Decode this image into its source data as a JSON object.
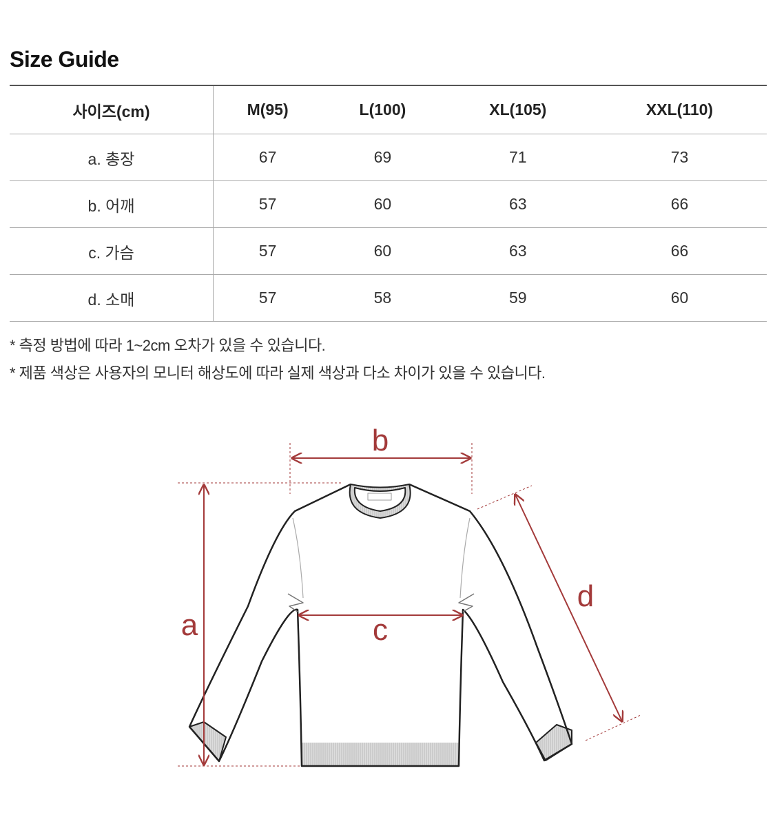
{
  "title": "Size Guide",
  "table": {
    "headers": [
      "사이즈(cm)",
      "M(95)",
      "L(100)",
      "XL(105)",
      "XXL(110)"
    ],
    "rows": [
      [
        "a. 총장",
        "67",
        "69",
        "71",
        "73"
      ],
      [
        "b. 어깨",
        "57",
        "60",
        "63",
        "66"
      ],
      [
        "c. 가슴",
        "57",
        "60",
        "63",
        "66"
      ],
      [
        "d. 소매",
        "57",
        "58",
        "59",
        "60"
      ]
    ]
  },
  "notes": [
    "* 측정 방법에 따라 1~2cm 오차가 있을 수 있습니다.",
    "* 제품 색상은 사용자의 모니터 해상도에 따라 실제 색상과 다소 차이가 있을 수 있습니다."
  ],
  "diagram": {
    "labels": {
      "a": "a",
      "b": "b",
      "c": "c",
      "d": "d"
    },
    "accent_color": "#a33a3a"
  }
}
